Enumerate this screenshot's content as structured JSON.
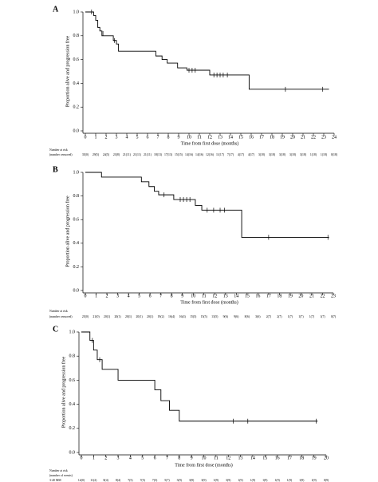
{
  "chart_data": [
    {
      "type": "step",
      "panel": "A",
      "ylabel": "Proportion alive and progression free",
      "xlabel": "Time from first dose (months)",
      "xlim": [
        0,
        24
      ],
      "ylim": [
        0,
        1.0
      ],
      "xticks": [
        0,
        1,
        2,
        3,
        4,
        5,
        6,
        7,
        8,
        9,
        10,
        11,
        12,
        13,
        14,
        15,
        16,
        17,
        18,
        19,
        20,
        21,
        22,
        23,
        24
      ],
      "yticks": [
        {
          "value": 0,
          "label": "0.0"
        },
        0.2,
        0.4,
        0.6,
        0.8,
        {
          "value": 1,
          "label": "1.0"
        }
      ],
      "color": "#000000",
      "x": [
        0,
        0.8,
        1.0,
        1.2,
        1.4,
        1.6,
        2.7,
        3.0,
        3.2,
        6.8,
        7.4,
        7.9,
        8.9,
        9.8,
        12.0,
        15.8,
        23.5
      ],
      "values": [
        1.0,
        0.97,
        0.93,
        0.87,
        0.84,
        0.8,
        0.76,
        0.73,
        0.67,
        0.63,
        0.6,
        0.57,
        0.53,
        0.51,
        0.47,
        0.35,
        0.35
      ],
      "censored": {
        "x": [
          0.6,
          1.7,
          2.8,
          10.0,
          10.3,
          10.6,
          12.4,
          12.7,
          13.0,
          13.3,
          13.7,
          19.3,
          22.9
        ],
        "values": [
          1.0,
          0.82,
          0.76,
          0.51,
          0.51,
          0.51,
          0.47,
          0.47,
          0.47,
          0.47,
          0.47,
          0.35,
          0.35
        ]
      },
      "risk_table": {
        "labels": [
          "Number at risk",
          "(number censored)"
        ],
        "values": [
          "35(0)",
          "29(5)",
          "24(5)",
          "23(8)",
          "21(11)",
          "21(11)",
          "21(11)",
          "18(13)",
          "17(13)",
          "15(15)",
          "14(16)",
          "14(16)",
          "12(16)",
          "11(17)",
          "7(17)",
          "4(17)",
          "4(17)",
          "3(18)",
          "3(18)",
          "3(18)",
          "3(18)",
          "3(18)",
          "1(18)",
          "1(18)",
          "0(18)"
        ]
      }
    },
    {
      "type": "step",
      "panel": "B",
      "ylabel": "Proportion alive and progression free",
      "xlabel": "Time from first dose (months)",
      "xlim": [
        0,
        23
      ],
      "ylim": [
        0,
        1.0
      ],
      "xticks": [
        0,
        1,
        2,
        3,
        4,
        5,
        6,
        7,
        8,
        9,
        10,
        11,
        12,
        13,
        14,
        15,
        16,
        17,
        18,
        19,
        20,
        21,
        22,
        23
      ],
      "yticks": [
        {
          "value": 0,
          "label": "0.0"
        },
        0.2,
        0.4,
        0.6,
        0.8,
        {
          "value": 1,
          "label": "1.0"
        }
      ],
      "color": "#000000",
      "x": [
        0,
        1.5,
        5.2,
        5.9,
        6.4,
        6.8,
        8.2,
        10.2,
        10.8,
        14.5,
        22.6
      ],
      "values": [
        1.0,
        0.96,
        0.92,
        0.88,
        0.84,
        0.81,
        0.77,
        0.72,
        0.68,
        0.45,
        0.45
      ],
      "censored": {
        "x": [
          7.3,
          8.8,
          9.1,
          9.4,
          9.7,
          11.3,
          11.9,
          12.5,
          12.9,
          17.0,
          22.5
        ],
        "values": [
          0.81,
          0.77,
          0.77,
          0.77,
          0.77,
          0.68,
          0.68,
          0.68,
          0.68,
          0.45,
          0.45
        ]
      },
      "risk_table": {
        "labels": [
          "Number at risk",
          "(number censored)"
        ],
        "values": [
          "25(0)",
          "21(0)",
          "20(1)",
          "20(1)",
          "20(1)",
          "20(1)",
          "20(1)",
          "19(2)",
          "16(4)",
          "16(4)",
          "15(5)",
          "15(5)",
          "13(5)",
          "9(6)",
          "9(6)",
          "8(6)",
          "3(6)",
          "2(7)",
          "2(7)",
          "1(7)",
          "1(7)",
          "1(7)",
          "1(7)",
          "0(7)"
        ]
      }
    },
    {
      "type": "step",
      "panel": "C",
      "ylabel": "Proportion alive and progression free",
      "xlabel": "Time from first dose (months)",
      "xlim": [
        0,
        20
      ],
      "ylim": [
        0,
        1.0
      ],
      "xticks": [
        0,
        1,
        2,
        3,
        4,
        5,
        6,
        7,
        8,
        9,
        10,
        11,
        12,
        13,
        14,
        15,
        16,
        17,
        18,
        19,
        20
      ],
      "yticks": [
        {
          "value": 0,
          "label": "0.0"
        },
        0.2,
        0.4,
        0.6,
        0.8,
        {
          "value": 1,
          "label": "1.0"
        }
      ],
      "color": "#000000",
      "x": [
        0,
        0.7,
        1.0,
        1.3,
        1.7,
        3.0,
        6.0,
        6.5,
        7.2,
        8.0,
        19.3
      ],
      "values": [
        1.0,
        0.93,
        0.85,
        0.77,
        0.69,
        0.6,
        0.52,
        0.43,
        0.35,
        0.26,
        0.26
      ],
      "censored": {
        "x": [
          0.9,
          1.5,
          12.4,
          13.6,
          19.2
        ],
        "values": [
          0.93,
          0.77,
          0.26,
          0.26,
          0.26
        ]
      },
      "risk_table": {
        "labels": [
          "Number at risk",
          "(number of events)",
          "3-40 MM"
        ],
        "values": [
          "14(0)",
          "11(2)",
          "8(4)",
          "8(4)",
          "7(5)",
          "7(5)",
          "7(5)",
          "5(7)",
          "3(9)",
          "3(9)",
          "3(9)",
          "3(9)",
          "3(9)",
          "1(9)",
          "1(9)",
          "1(9)",
          "1(9)",
          "1(9)",
          "1(9)",
          "1(9)",
          "0(9)"
        ]
      }
    }
  ]
}
